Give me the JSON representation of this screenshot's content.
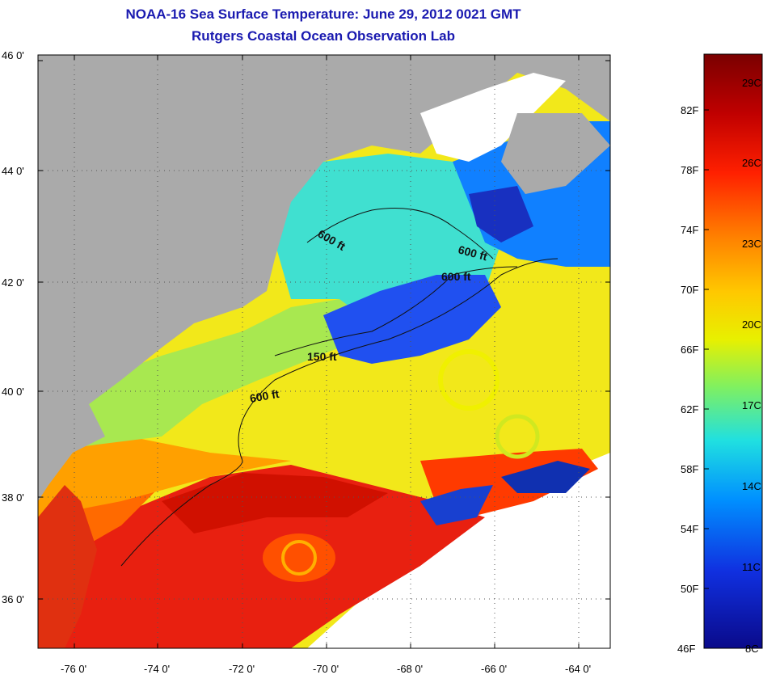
{
  "title": "NOAA-16 Sea Surface Temperature:  June 29, 2012 0021 GMT",
  "subtitle": "Rutgers Coastal Ocean Observation Lab",
  "lat_labels": [
    "46 0'",
    "44 0'",
    "42 0'",
    "40 0'",
    "38 0'",
    "36 0'"
  ],
  "lon_labels": [
    "-76 0'",
    "-74 0'",
    "-72 0'",
    "-70 0'",
    "-68 0'",
    "-66 0'",
    "-64 0'"
  ],
  "contour_labels": [
    "600 ft",
    "600 ft",
    "600 ft",
    "150 ft",
    "600 ft"
  ],
  "colorbar": {
    "f_labels": [
      "82F",
      "78F",
      "74F",
      "70F",
      "66F",
      "62F",
      "58F",
      "54F",
      "50F",
      "46F"
    ],
    "c_labels": [
      "29C",
      "26C",
      "23C",
      "20C",
      "17C",
      "14C",
      "11C",
      "8C"
    ],
    "colors": [
      "#7a0000",
      "#c00000",
      "#ff2000",
      "#ff7a00",
      "#ffc800",
      "#e8f000",
      "#80f060",
      "#20e0e0",
      "#0090ff",
      "#1030e0",
      "#0a0a8a"
    ]
  },
  "colors": {
    "land": "#aaaaaa",
    "cloud": "#ffffff",
    "title": "#1a1ab0"
  }
}
